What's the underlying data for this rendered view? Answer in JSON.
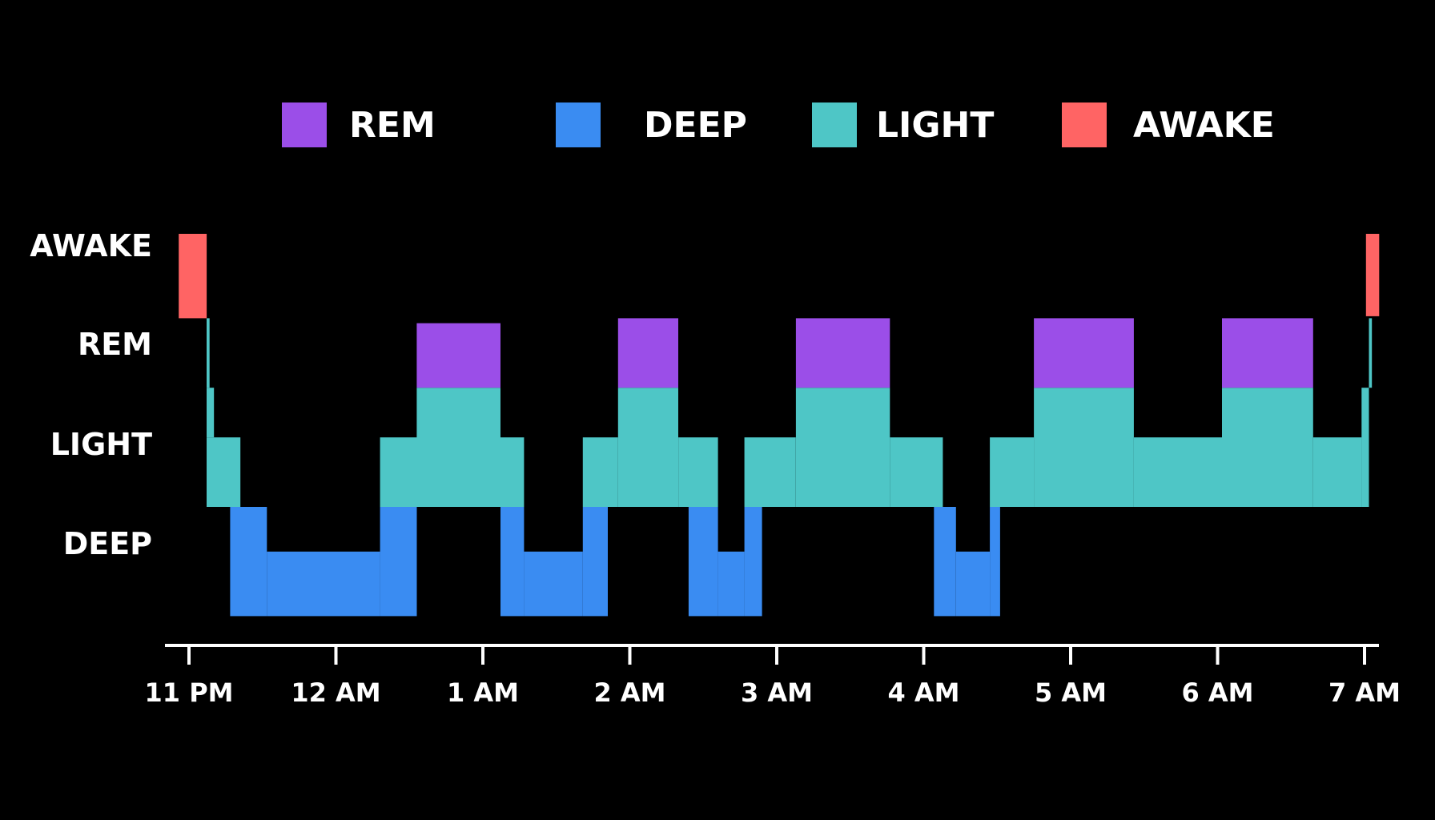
{
  "chart_data": {
    "type": "area",
    "title": "",
    "xlabel": "",
    "ylabel": "",
    "legend": {
      "placement": "top",
      "items": [
        {
          "name": "REM",
          "color": "#9b4ee8"
        },
        {
          "name": "DEEP",
          "color": "#3a8cf2"
        },
        {
          "name": "LIGHT",
          "color": "#4ec6c6"
        },
        {
          "name": "AWAKE",
          "color": "#ff6464"
        }
      ]
    },
    "y_categories": [
      "AWAKE",
      "REM",
      "LIGHT",
      "DEEP"
    ],
    "x_ticks": [
      "11 PM",
      "12 AM",
      "1 AM",
      "2 AM",
      "3 AM",
      "4 AM",
      "5 AM",
      "6 AM",
      "7 AM"
    ],
    "x_range_hours": [
      22.85,
      31.12
    ],
    "grid": false,
    "colors": {
      "REM": "#9b4ee8",
      "DEEP": "#3a8cf2",
      "LIGHT": "#4ec6c6",
      "AWAKE": "#ff6464"
    },
    "series": [
      {
        "name": "AWAKE",
        "segments": [
          {
            "start": 22.93,
            "end": 23.12,
            "top": 0.15,
            "bottom": 1.0
          },
          {
            "start": 31.01,
            "end": 31.1,
            "top": 0.15,
            "bottom": 0.98
          }
        ]
      },
      {
        "name": "REM",
        "segments": [
          {
            "start": 24.55,
            "end": 25.12,
            "top": 1.05,
            "bottom": 1.7
          },
          {
            "start": 25.92,
            "end": 26.33,
            "top": 1.0,
            "bottom": 1.7
          },
          {
            "start": 27.13,
            "end": 27.77,
            "top": 1.0,
            "bottom": 1.7
          },
          {
            "start": 28.75,
            "end": 29.43,
            "top": 1.0,
            "bottom": 1.7
          },
          {
            "start": 30.03,
            "end": 30.65,
            "top": 1.0,
            "bottom": 1.7
          }
        ]
      },
      {
        "name": "LIGHT",
        "segments": [
          {
            "start": 23.12,
            "end": 23.14,
            "top": 1.0,
            "bottom": 1.7
          },
          {
            "start": 23.12,
            "end": 23.17,
            "top": 1.7,
            "bottom": 2.2
          },
          {
            "start": 23.12,
            "end": 23.35,
            "top": 2.2,
            "bottom": 2.9
          },
          {
            "start": 24.3,
            "end": 24.55,
            "top": 2.2,
            "bottom": 2.9
          },
          {
            "start": 24.55,
            "end": 25.12,
            "top": 1.7,
            "bottom": 2.9
          },
          {
            "start": 25.12,
            "end": 25.28,
            "top": 2.2,
            "bottom": 2.9
          },
          {
            "start": 25.68,
            "end": 25.92,
            "top": 2.2,
            "bottom": 2.9
          },
          {
            "start": 25.92,
            "end": 26.33,
            "top": 1.7,
            "bottom": 2.9
          },
          {
            "start": 26.33,
            "end": 26.6,
            "top": 2.2,
            "bottom": 2.9
          },
          {
            "start": 26.78,
            "end": 27.13,
            "top": 2.2,
            "bottom": 2.9
          },
          {
            "start": 27.13,
            "end": 27.77,
            "top": 1.7,
            "bottom": 2.9
          },
          {
            "start": 27.77,
            "end": 28.13,
            "top": 2.2,
            "bottom": 2.9
          },
          {
            "start": 28.45,
            "end": 28.75,
            "top": 2.2,
            "bottom": 2.9
          },
          {
            "start": 28.75,
            "end": 29.43,
            "top": 1.7,
            "bottom": 2.9
          },
          {
            "start": 29.43,
            "end": 30.03,
            "top": 2.2,
            "bottom": 2.9
          },
          {
            "start": 30.03,
            "end": 30.65,
            "top": 1.7,
            "bottom": 2.9
          },
          {
            "start": 30.65,
            "end": 30.98,
            "top": 2.2,
            "bottom": 2.9
          },
          {
            "start": 30.98,
            "end": 31.03,
            "top": 1.7,
            "bottom": 2.9
          },
          {
            "start": 31.03,
            "end": 31.05,
            "top": 1.0,
            "bottom": 1.7
          }
        ]
      },
      {
        "name": "DEEP",
        "segments": [
          {
            "start": 23.28,
            "end": 23.53,
            "top": 2.9,
            "bottom": 4.0
          },
          {
            "start": 23.53,
            "end": 24.3,
            "top": 3.35,
            "bottom": 4.0
          },
          {
            "start": 24.3,
            "end": 24.55,
            "top": 2.9,
            "bottom": 4.0
          },
          {
            "start": 25.12,
            "end": 25.28,
            "top": 2.9,
            "bottom": 4.0
          },
          {
            "start": 25.28,
            "end": 25.68,
            "top": 3.35,
            "bottom": 4.0
          },
          {
            "start": 25.68,
            "end": 25.85,
            "top": 2.9,
            "bottom": 4.0
          },
          {
            "start": 26.4,
            "end": 26.6,
            "top": 2.9,
            "bottom": 4.0
          },
          {
            "start": 26.6,
            "end": 26.78,
            "top": 3.35,
            "bottom": 4.0
          },
          {
            "start": 26.78,
            "end": 26.9,
            "top": 2.9,
            "bottom": 4.0
          },
          {
            "start": 28.07,
            "end": 28.22,
            "top": 2.9,
            "bottom": 4.0
          },
          {
            "start": 28.22,
            "end": 28.45,
            "top": 3.35,
            "bottom": 4.0
          },
          {
            "start": 28.45,
            "end": 28.52,
            "top": 2.9,
            "bottom": 4.0
          }
        ]
      }
    ]
  }
}
